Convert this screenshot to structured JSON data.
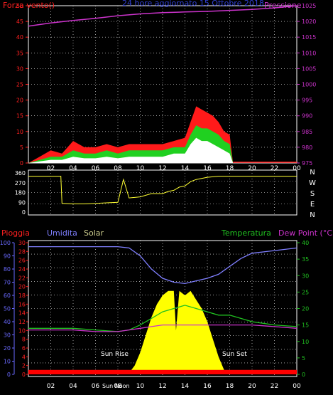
{
  "colors": {
    "wind": "#ff1a1a",
    "gust_dark": "#ff0000",
    "wind_green": "#20d020",
    "wind_white": "#ffffff",
    "pressure": "#cc33cc",
    "axis_red": "#ff2020",
    "axis_pressure": "#cc33cc",
    "title": "#2f3fd0",
    "direction": "#ffff33",
    "humidity": "#7f7fff",
    "solar": "#ffff00",
    "temperature": "#20c020",
    "dewpoint": "#cc33cc",
    "rain": "#ff0000",
    "axis_blue": "#6a6aff",
    "axis_green": "#20c020",
    "grid": "#ffffff"
  },
  "chart_data": [
    {
      "type": "line",
      "title": "24 hore aggiornato   15 Ottobre 2018",
      "left_label": "Forza vento()",
      "right_label": "Pressione",
      "x_ticks": [
        "02",
        "04",
        "06",
        "08",
        "10",
        "12",
        "14",
        "16",
        "18",
        "20",
        "22",
        "00"
      ],
      "y_left_ticks": [
        "0",
        "5",
        "10",
        "15",
        "20",
        "25",
        "30",
        "35",
        "40",
        "45",
        "50"
      ],
      "y_left_range": [
        0,
        50
      ],
      "y_right_ticks": [
        "975",
        "980",
        "985",
        "990",
        "995",
        "1000",
        "1005",
        "1010",
        "1015",
        "1020",
        "1025"
      ],
      "y_right_range": [
        975,
        1025
      ],
      "grid": true,
      "series": [
        {
          "key": "pressure",
          "x": [
            0,
            2,
            4,
            6,
            8,
            10,
            12,
            14,
            16,
            18,
            20,
            22,
            24
          ],
          "values": [
            1018.5,
            1019.5,
            1020.3,
            1021.0,
            1021.8,
            1022.4,
            1022.8,
            1023.0,
            1023.2,
            1023.5,
            1023.8,
            1024.3,
            1025.0
          ]
        },
        {
          "key": "gust",
          "x": [
            0,
            1,
            2,
            3,
            4,
            5,
            6,
            7,
            8,
            9,
            10,
            11,
            12,
            13,
            14,
            14.5,
            15,
            15.5,
            16,
            16.5,
            17,
            17.5,
            18,
            18.3,
            19,
            20,
            21,
            22,
            23,
            24
          ],
          "values": [
            0,
            2,
            4,
            3,
            7,
            5,
            5,
            6,
            5,
            6,
            6,
            6,
            6,
            7,
            8,
            13,
            18,
            17,
            16,
            15,
            13,
            10,
            9,
            0,
            0,
            0,
            0,
            0,
            0,
            0
          ]
        },
        {
          "key": "wind",
          "x": [
            0,
            1,
            2,
            3,
            4,
            5,
            6,
            7,
            8,
            9,
            10,
            11,
            12,
            13,
            14,
            14.5,
            15,
            15.5,
            16,
            16.5,
            17,
            17.5,
            18,
            18.3,
            19,
            20,
            21,
            22,
            23,
            24
          ],
          "values": [
            0,
            1,
            2,
            2,
            4,
            3,
            3,
            4,
            3,
            4,
            4,
            4,
            4,
            5,
            5,
            9,
            12,
            11,
            11,
            10,
            9,
            7,
            6,
            0,
            0,
            0,
            0,
            0,
            0,
            0
          ]
        },
        {
          "key": "wind_avg",
          "x": [
            0,
            1,
            2,
            3,
            4,
            5,
            6,
            7,
            8,
            9,
            10,
            11,
            12,
            13,
            14,
            14.5,
            15,
            15.5,
            16,
            16.5,
            17,
            17.5,
            18,
            18.3,
            19,
            20,
            21,
            22,
            23,
            24
          ],
          "values": [
            0,
            0.5,
            1,
            1,
            2,
            1.5,
            1.5,
            2,
            1.5,
            2,
            2,
            2,
            2,
            3,
            3,
            6,
            8,
            7,
            7,
            6,
            5,
            4,
            3,
            0,
            0,
            0,
            0,
            0,
            0,
            0
          ]
        }
      ]
    },
    {
      "type": "line",
      "title": "",
      "y_left_ticks": [
        "0",
        "90",
        "180",
        "270",
        "360"
      ],
      "y_left_range": [
        0,
        360
      ],
      "y_right_ticks": [
        "N",
        "W",
        "S",
        "E",
        "N"
      ],
      "x_ticks": [
        "02",
        "04",
        "06",
        "08",
        "10",
        "12",
        "14",
        "16",
        "18",
        "20",
        "22",
        "00"
      ],
      "grid": true,
      "series": [
        {
          "key": "direction",
          "x": [
            0,
            1,
            2,
            2.9,
            3.0,
            4,
            5,
            6,
            7,
            8,
            8.5,
            9,
            10,
            11,
            12,
            12.5,
            13,
            13.5,
            14,
            14.5,
            15,
            16,
            17,
            18,
            19,
            20,
            21,
            22,
            23,
            24
          ],
          "values": [
            330,
            330,
            330,
            330,
            80,
            75,
            75,
            80,
            85,
            90,
            300,
            130,
            140,
            170,
            170,
            190,
            200,
            230,
            240,
            280,
            300,
            320,
            330,
            330,
            330,
            330,
            330,
            330,
            330,
            330
          ]
        }
      ]
    },
    {
      "type": "line",
      "title": "",
      "labels": {
        "rain": "Pioggia",
        "humidity": "Umidita",
        "solar": "Solar",
        "temperature": "Temperatura",
        "dewpoint": "Dew Point (°C)"
      },
      "y_left_outer_ticks": [
        "0",
        "10",
        "20",
        "30",
        "40",
        "50",
        "60",
        "70",
        "80",
        "90",
        "100"
      ],
      "y_left_outer_range": [
        0,
        100
      ],
      "y_left_inner_ticks": [
        "0",
        "2",
        "4",
        "6",
        "8",
        "10",
        "12",
        "14",
        "16",
        "18",
        "20",
        "22",
        "24",
        "26",
        "28",
        "30"
      ],
      "y_left_inner_range": [
        0,
        30
      ],
      "y_right_ticks": [
        "0",
        "5",
        "10",
        "15",
        "20",
        "25",
        "30",
        "35",
        "40"
      ],
      "y_right_range": [
        0,
        40
      ],
      "x_ticks": [
        "02",
        "04",
        "06",
        "08",
        "10",
        "12",
        "14",
        "16",
        "18",
        "20",
        "22",
        "00"
      ],
      "annotations": [
        "Sun Rise",
        "Sun Set",
        "Sun Noon"
      ],
      "grid": true,
      "series": [
        {
          "key": "humidity",
          "x": [
            0,
            2,
            4,
            6,
            8,
            9,
            10,
            11,
            12,
            13,
            14,
            15,
            16,
            17,
            18,
            19,
            20,
            22,
            24
          ],
          "values": [
            97,
            97,
            97,
            97,
            97,
            96,
            90,
            80,
            73,
            70,
            69,
            71,
            73,
            76,
            82,
            88,
            92,
            94,
            96
          ]
        },
        {
          "key": "temperature",
          "x": [
            0,
            2,
            4,
            6,
            8,
            9,
            10,
            11,
            12,
            13,
            14,
            15,
            16,
            17,
            18,
            19,
            20,
            22,
            24
          ],
          "values": [
            14,
            14,
            14,
            13.5,
            13,
            13.5,
            15,
            17,
            19,
            20,
            21,
            20,
            19,
            18,
            18,
            17,
            16,
            15,
            14.5
          ]
        },
        {
          "key": "dewpoint",
          "x": [
            0,
            2,
            4,
            6,
            8,
            9,
            10,
            11,
            12,
            13,
            14,
            15,
            16,
            17,
            18,
            19,
            20,
            22,
            24
          ],
          "values": [
            13.5,
            13.5,
            13.5,
            13,
            13,
            13.5,
            14,
            14.5,
            15,
            15,
            15,
            15,
            15,
            15,
            15,
            15,
            15,
            14.5,
            14
          ]
        },
        {
          "key": "solar",
          "x": [
            8.9,
            9.5,
            10,
            10.5,
            11,
            11.5,
            12,
            12.5,
            13,
            13.2,
            13.5,
            14,
            14.5,
            15,
            15.5,
            16,
            16.5,
            17,
            17.5,
            17.9
          ],
          "values": [
            0,
            2,
            5,
            9,
            13,
            16,
            18,
            19,
            19,
            10,
            19,
            18,
            19,
            17,
            15,
            12,
            8,
            4,
            1,
            0
          ]
        },
        {
          "key": "rain",
          "x": [
            0,
            24
          ],
          "values": [
            1,
            1
          ]
        }
      ]
    }
  ]
}
